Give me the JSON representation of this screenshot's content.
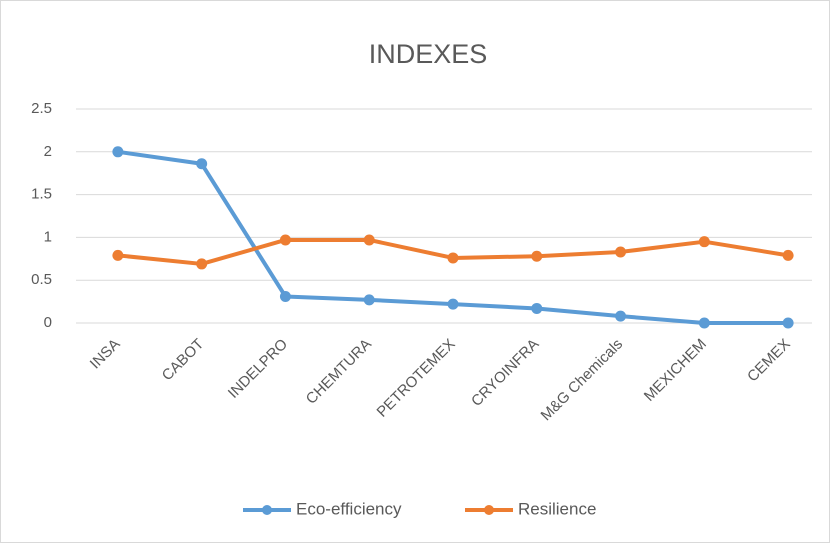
{
  "chart_data": {
    "type": "line",
    "title": "INDEXES",
    "categories": [
      "INSA",
      "CABOT",
      "INDELPRO",
      "CHEMTURA",
      "PETROTEMEX",
      "CRYOINFRA",
      "M&G Chemicals",
      "MEXICHEM",
      "CEMEX"
    ],
    "series": [
      {
        "name": "Eco-efficiency",
        "color": "#5b9bd5",
        "values": [
          2.0,
          1.86,
          0.31,
          0.27,
          0.22,
          0.17,
          0.08,
          0.0,
          0.0
        ]
      },
      {
        "name": "Resilience",
        "color": "#ed7d31",
        "values": [
          0.79,
          0.69,
          0.97,
          0.97,
          0.76,
          0.78,
          0.83,
          0.95,
          0.79
        ]
      }
    ],
    "ylim": [
      0,
      2.5
    ],
    "yticks": [
      0,
      0.5,
      1,
      1.5,
      2,
      2.5
    ],
    "grid": true,
    "legend": "bottom"
  }
}
